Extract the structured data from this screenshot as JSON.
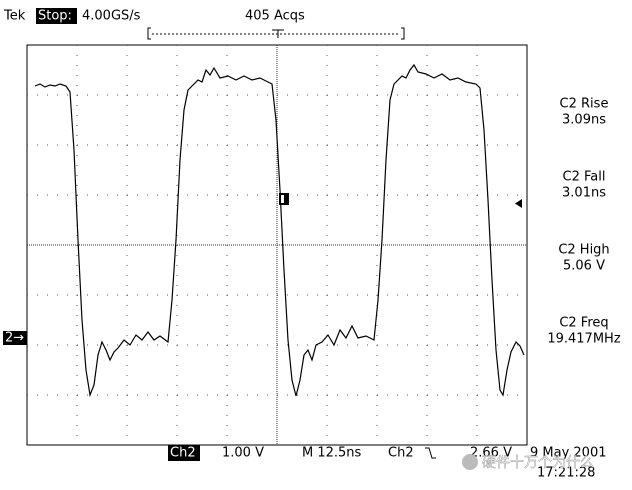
{
  "header": {
    "brand": "Tek",
    "state": "Stop:",
    "rate": "4.00GS/s",
    "acqs": "405 Acqs"
  },
  "measurements": [
    {
      "label": "C2 Rise",
      "value": "3.09ns"
    },
    {
      "label": "C2 Fall",
      "value": "3.01ns"
    },
    {
      "label": "C2 High",
      "value": "5.06 V"
    },
    {
      "label": "C2 Freq",
      "value": "19.417MHz"
    }
  ],
  "channel_marker": "2→",
  "footer": {
    "channel": "Ch2",
    "scale": "1.00 V",
    "timebase": "M 12.5ns",
    "trigger_channel": "Ch2",
    "trigger_level": "2.66 V",
    "date": "9 May 2001",
    "time": "17:21:28"
  },
  "watermark": "硬件十万个为什么"
}
